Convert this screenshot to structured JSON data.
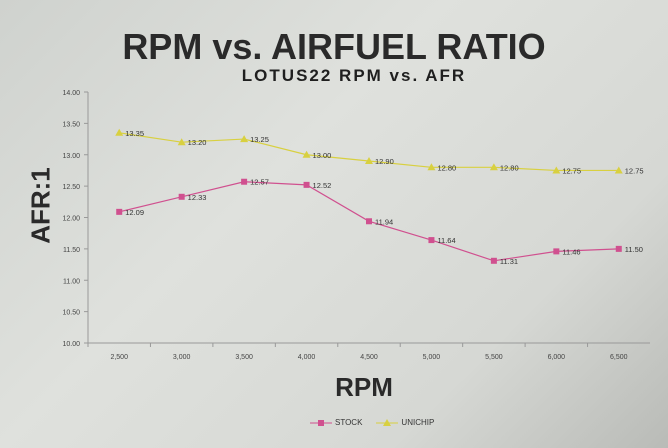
{
  "chart_data": {
    "type": "line",
    "title": "RPM vs. AIRFUEL RATIO",
    "subtitle": "LOTUS22 RPM vs. AFR",
    "xlabel": "RPM",
    "ylabel": "AFR:1",
    "categories": [
      "2,500",
      "3,000",
      "3,500",
      "4,000",
      "4,500",
      "5,000",
      "5,500",
      "6,000",
      "6,500"
    ],
    "ylim": [
      10.0,
      14.0
    ],
    "yticks": [
      "10.00",
      "10.50",
      "11.00",
      "11.50",
      "12.00",
      "12.50",
      "13.00",
      "13.50",
      "14.00"
    ],
    "grid": false,
    "legend": "bottom",
    "series": [
      {
        "name": "STOCK",
        "color": "#d0508f",
        "marker": "square",
        "values": [
          12.09,
          12.33,
          12.57,
          12.52,
          11.94,
          11.64,
          11.31,
          11.46,
          11.5
        ],
        "labels": [
          "12.09",
          "12.33",
          "12.57",
          "12.52",
          "11.94",
          "11.64",
          "11.31",
          "11.46",
          "11.50"
        ]
      },
      {
        "name": "UNICHIP",
        "color": "#d8d040",
        "marker": "triangle",
        "values": [
          13.35,
          13.2,
          13.25,
          13.0,
          12.9,
          12.8,
          12.8,
          12.75,
          12.75
        ],
        "labels": [
          "13.35",
          "13.20",
          "13.25",
          "13.00",
          "12.90",
          "12.80",
          "12.80",
          "12.75",
          "12.75"
        ]
      }
    ]
  }
}
